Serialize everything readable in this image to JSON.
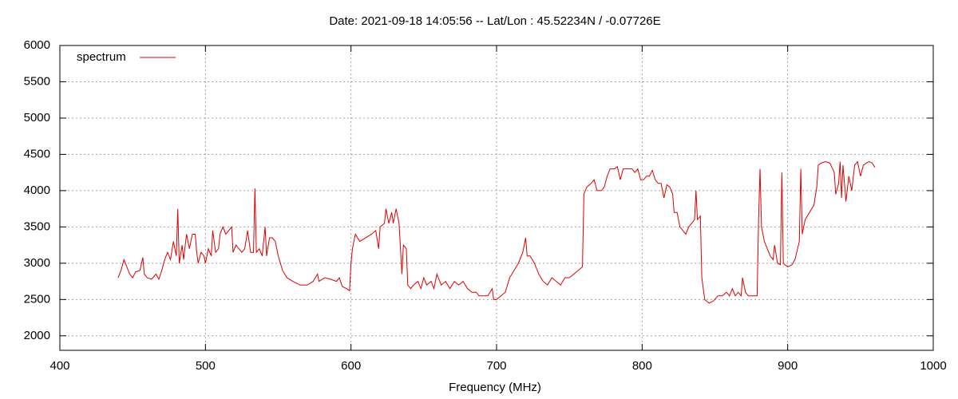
{
  "chart_data": {
    "type": "line",
    "title": "Date: 2021-09-18 14:05:56  --  Lat/Lon : 45.52234N / -0.07726E",
    "x_label": "Frequency (MHz)",
    "legend": "top-left",
    "grid": true,
    "xlim": [
      400,
      1000
    ],
    "xticks": [
      400,
      500,
      600,
      700,
      800,
      900,
      1000
    ],
    "ylim": [
      1800,
      6000
    ],
    "yticks": [
      2000,
      2500,
      3000,
      3500,
      4000,
      4500,
      5000,
      5500,
      6000
    ],
    "x": [
      440,
      442,
      444,
      446,
      448,
      450,
      452,
      455,
      457,
      458,
      460,
      463,
      466,
      468,
      470,
      472,
      474,
      476,
      478,
      480,
      481,
      482,
      484,
      485,
      487,
      489,
      491,
      493,
      494,
      495,
      497,
      499,
      500,
      502,
      504,
      505,
      507,
      509,
      510,
      512,
      514,
      516,
      518,
      519,
      521,
      523,
      525,
      527,
      529,
      531,
      533,
      534,
      535,
      537,
      539,
      541,
      542,
      544,
      546,
      548,
      550,
      553,
      556,
      560,
      565,
      570,
      574,
      577,
      578,
      582,
      586,
      590,
      592,
      594,
      597,
      599,
      600,
      601,
      603,
      606,
      610,
      614,
      617,
      619,
      620,
      623,
      624,
      626,
      628,
      629,
      631,
      633,
      634,
      635,
      636,
      638,
      639,
      641,
      643,
      646,
      648,
      650,
      652,
      655,
      657,
      659,
      662,
      665,
      668,
      671,
      674,
      677,
      680,
      683,
      686,
      688,
      691,
      694,
      697,
      698,
      700,
      703,
      706,
      709,
      712,
      715,
      718,
      720,
      721,
      723,
      726,
      729,
      732,
      735,
      738,
      741,
      744,
      747,
      750,
      753,
      756,
      759,
      760,
      762,
      765,
      767,
      769,
      772,
      774,
      776,
      778,
      781,
      783,
      785,
      787,
      790,
      793,
      795,
      797,
      799,
      801,
      803,
      805,
      807,
      809,
      811,
      813,
      815,
      817,
      819,
      821,
      822,
      824,
      826,
      828,
      830,
      832,
      834,
      836,
      837,
      838,
      840,
      841,
      843,
      846,
      849,
      852,
      855,
      858,
      860,
      862,
      864,
      866,
      868,
      869,
      871,
      873,
      876,
      879,
      880,
      881,
      882,
      884,
      886,
      888,
      890,
      891,
      893,
      895,
      896,
      897,
      898,
      900,
      903,
      905,
      908,
      909,
      910,
      912,
      915,
      918,
      920,
      921,
      923,
      926,
      929,
      932,
      933,
      935,
      936,
      937,
      938,
      940,
      942,
      944,
      946,
      948,
      950,
      952,
      954,
      956,
      958,
      960
    ],
    "series": [
      {
        "name": "spectrum",
        "color": "#dd0000",
        "values": [
          2800,
          2900,
          3050,
          2950,
          2850,
          2800,
          2880,
          2900,
          3080,
          2850,
          2800,
          2780,
          2850,
          2780,
          2900,
          3050,
          3150,
          3050,
          3300,
          3100,
          3750,
          3000,
          3250,
          3050,
          3400,
          3200,
          3400,
          3400,
          3150,
          3000,
          3150,
          3100,
          3000,
          3200,
          3100,
          3450,
          3150,
          3200,
          3400,
          3500,
          3400,
          3450,
          3500,
          3150,
          3250,
          3200,
          3150,
          3200,
          3450,
          3150,
          3150,
          4030,
          3150,
          3200,
          3100,
          3500,
          3100,
          3350,
          3350,
          3300,
          3100,
          2900,
          2800,
          2750,
          2700,
          2700,
          2750,
          2850,
          2750,
          2800,
          2780,
          2750,
          2800,
          2680,
          2650,
          2620,
          3000,
          3200,
          3400,
          3300,
          3350,
          3400,
          3450,
          3200,
          3500,
          3550,
          3750,
          3550,
          3700,
          3550,
          3750,
          3550,
          3200,
          2850,
          3250,
          3200,
          2700,
          2650,
          2700,
          2750,
          2650,
          2800,
          2700,
          2750,
          2650,
          2850,
          2700,
          2750,
          2650,
          2750,
          2700,
          2750,
          2650,
          2600,
          2600,
          2550,
          2550,
          2550,
          2650,
          2500,
          2500,
          2550,
          2600,
          2800,
          2900,
          3000,
          3150,
          3350,
          3100,
          3100,
          3000,
          2850,
          2750,
          2700,
          2800,
          2750,
          2700,
          2800,
          2800,
          2850,
          2900,
          2950,
          3950,
          4050,
          4100,
          4150,
          4000,
          4000,
          4050,
          4200,
          4300,
          4300,
          4330,
          4150,
          4300,
          4300,
          4300,
          4250,
          4300,
          4150,
          4150,
          4200,
          4200,
          4280,
          4150,
          4100,
          4100,
          3900,
          4080,
          4050,
          3950,
          3700,
          3700,
          3500,
          3450,
          3400,
          3500,
          3550,
          3600,
          4000,
          3600,
          3650,
          2800,
          2500,
          2450,
          2480,
          2550,
          2550,
          2600,
          2550,
          2650,
          2550,
          2600,
          2550,
          2800,
          2600,
          2550,
          2550,
          2550,
          3600,
          4300,
          3500,
          3300,
          3200,
          3100,
          3050,
          3250,
          3000,
          2980,
          4250,
          3000,
          2980,
          2950,
          2980,
          3050,
          3300,
          4300,
          3400,
          3600,
          3700,
          3800,
          4050,
          4350,
          4380,
          4400,
          4380,
          4250,
          3950,
          4100,
          4400,
          3900,
          4350,
          3850,
          4200,
          4000,
          4350,
          4400,
          4200,
          4350,
          4380,
          4400,
          4380,
          4320
        ]
      }
    ]
  }
}
